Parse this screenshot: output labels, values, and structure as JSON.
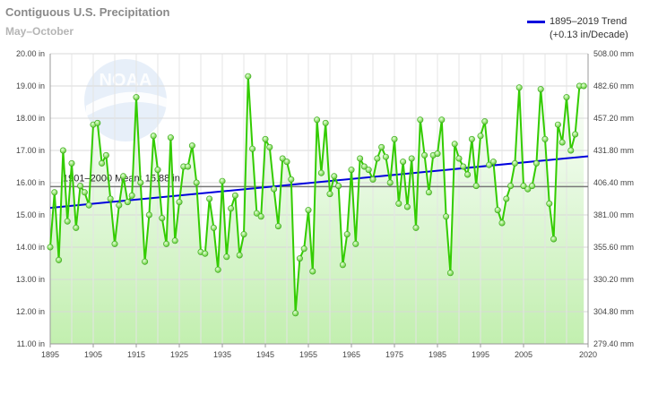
{
  "chart_data": {
    "type": "line",
    "title": "Contiguous U.S. Precipitation",
    "subtitle": "May–October",
    "x_ticks": [
      "1895",
      "1905",
      "1915",
      "1925",
      "1935",
      "1945",
      "1955",
      "1965",
      "1975",
      "1985",
      "1995",
      "2005",
      "2020"
    ],
    "y_ticks_in": [
      "11.00 in",
      "12.00 in",
      "13.00 in",
      "14.00 in",
      "15.00 in",
      "16.00 in",
      "17.00 in",
      "18.00 in",
      "19.00 in",
      "20.00 in"
    ],
    "y_ticks_mm": [
      "279.40 mm",
      "304.80 mm",
      "330.20 mm",
      "355.60 mm",
      "381.00 mm",
      "406.40 mm",
      "431.80 mm",
      "457.20 mm",
      "482.60 mm",
      "508.00 mm"
    ],
    "xlim": [
      1895,
      2020
    ],
    "ylim": [
      11,
      20
    ],
    "series": [
      {
        "color": "#33cc00",
        "x": [
          1895,
          1896,
          1897,
          1898,
          1899,
          1900,
          1901,
          1902,
          1903,
          1904,
          1905,
          1906,
          1907,
          1908,
          1909,
          1910,
          1911,
          1912,
          1913,
          1914,
          1915,
          1916,
          1917,
          1918,
          1919,
          1920,
          1921,
          1922,
          1923,
          1924,
          1925,
          1926,
          1927,
          1928,
          1929,
          1930,
          1931,
          1932,
          1933,
          1934,
          1935,
          1936,
          1937,
          1938,
          1939,
          1940,
          1941,
          1942,
          1943,
          1944,
          1945,
          1946,
          1947,
          1948,
          1949,
          1950,
          1951,
          1952,
          1953,
          1954,
          1955,
          1956,
          1957,
          1958,
          1959,
          1960,
          1961,
          1962,
          1963,
          1964,
          1965,
          1966,
          1967,
          1968,
          1969,
          1970,
          1971,
          1972,
          1973,
          1974,
          1975,
          1976,
          1977,
          1978,
          1979,
          1980,
          1981,
          1982,
          1983,
          1984,
          1985,
          1986,
          1987,
          1988,
          1989,
          1990,
          1991,
          1992,
          1993,
          1994,
          1995,
          1996,
          1997,
          1998,
          1999,
          2000,
          2001,
          2002,
          2003,
          2004,
          2005,
          2006,
          2007,
          2008,
          2009,
          2010,
          2011,
          2012,
          2013,
          2014,
          2015,
          2016,
          2017,
          2018,
          2019
        ],
        "y": [
          14.0,
          15.7,
          13.6,
          17.0,
          14.8,
          16.6,
          14.6,
          15.9,
          15.7,
          15.3,
          17.8,
          17.85,
          16.6,
          16.85,
          15.5,
          14.1,
          15.3,
          16.2,
          15.4,
          15.6,
          18.65,
          16.0,
          13.55,
          15.0,
          17.45,
          16.4,
          14.9,
          14.1,
          17.4,
          14.2,
          15.4,
          16.5,
          16.5,
          17.15,
          16.0,
          13.85,
          13.8,
          15.5,
          14.6,
          13.3,
          16.05,
          13.7,
          15.2,
          15.6,
          13.75,
          14.4,
          19.3,
          17.05,
          15.05,
          14.95,
          17.35,
          17.1,
          15.8,
          14.65,
          16.75,
          16.65,
          16.1,
          11.95,
          13.65,
          13.95,
          15.15,
          13.25,
          17.95,
          16.3,
          17.85,
          15.65,
          16.2,
          15.9,
          13.45,
          14.4,
          16.4,
          14.1,
          16.75,
          16.5,
          16.4,
          16.1,
          16.75,
          17.1,
          16.8,
          16.0,
          17.35,
          15.35,
          16.65,
          15.25,
          16.75,
          14.6,
          17.95,
          16.85,
          15.7,
          16.85,
          16.9,
          17.95,
          14.95,
          13.2,
          17.2,
          16.75,
          16.5,
          16.25,
          17.35,
          15.9,
          17.45,
          17.9,
          16.55,
          16.65,
          15.15,
          14.75,
          15.5,
          15.9,
          16.6,
          18.95,
          15.9,
          15.8,
          15.9,
          16.6,
          18.9,
          17.35,
          15.35,
          14.25,
          17.8,
          17.25,
          18.65,
          17.0,
          17.5,
          19.0,
          19.0
        ]
      }
    ],
    "trend": {
      "name": "1895–2019 Trend",
      "detail": "(+0.13 in/Decade)",
      "color": "#0000dd",
      "y_start": 15.22,
      "y_end": 16.82
    },
    "mean": {
      "label": "1901–2000 Mean: 15.88 in",
      "value": 15.88
    },
    "area_fill": "light green gradient",
    "grid": true,
    "legend_position": "top-right",
    "watermark": "NOAA"
  }
}
